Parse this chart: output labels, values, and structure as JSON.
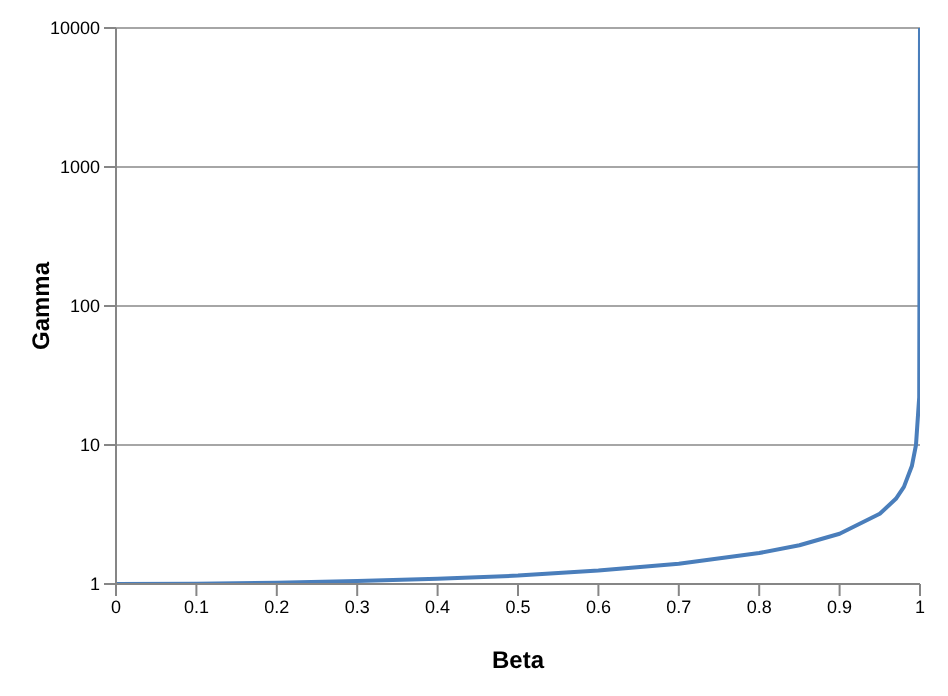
{
  "chart_data": {
    "type": "line",
    "xlabel": "Beta",
    "ylabel": "Gamma",
    "x": [
      0,
      0.1,
      0.2,
      0.3,
      0.4,
      0.5,
      0.6,
      0.7,
      0.8,
      0.85,
      0.9,
      0.95,
      0.97,
      0.98,
      0.99,
      0.995,
      0.999,
      1
    ],
    "series": [
      {
        "color": "#4a7ebb",
        "values": [
          1,
          1.005,
          1.02,
          1.05,
          1.09,
          1.15,
          1.25,
          1.4,
          1.67,
          1.9,
          2.3,
          3.2,
          4.1,
          5,
          7.1,
          10,
          22,
          10000
        ]
      }
    ],
    "xlim": [
      0,
      1
    ],
    "xticks": [
      0,
      0.1,
      0.2,
      0.3,
      0.4,
      0.5,
      0.6,
      0.7,
      0.8,
      0.9,
      1
    ],
    "ylim": [
      1,
      10000
    ],
    "yticks": [
      1,
      10,
      100,
      1000,
      10000
    ],
    "log": "y",
    "grid": "y",
    "marker": "none",
    "line_style": "solid",
    "legend": false
  }
}
